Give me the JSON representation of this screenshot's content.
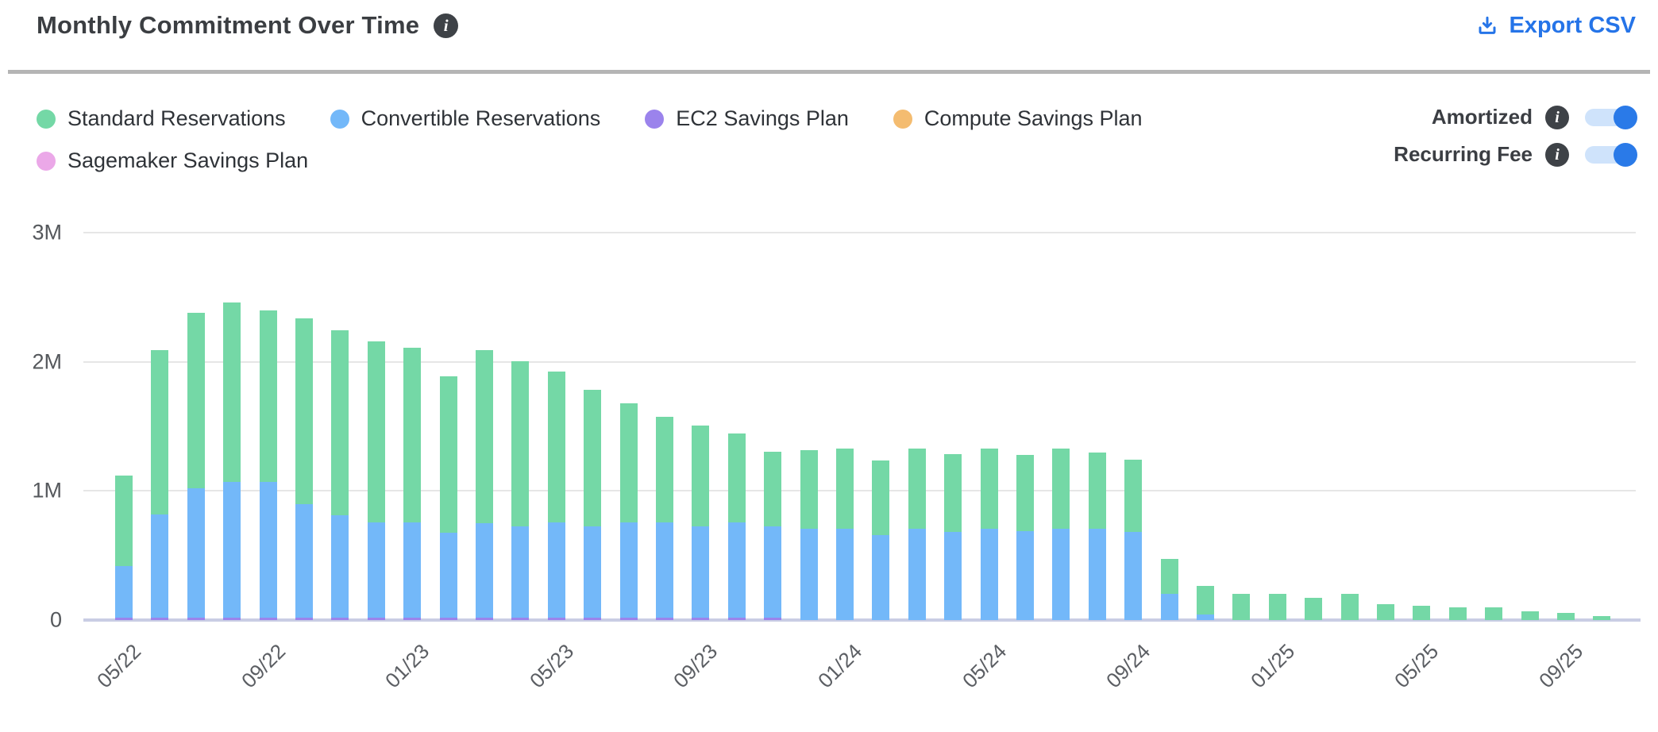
{
  "header": {
    "title": "Monthly Commitment Over Time",
    "export_label": "Export CSV"
  },
  "legend": {
    "items": [
      {
        "label": "Standard Reservations",
        "color": "#74d8a6"
      },
      {
        "label": "Convertible Reservations",
        "color": "#73b8f9"
      },
      {
        "label": "EC2 Savings Plan",
        "color": "#9b83ec"
      },
      {
        "label": "Compute Savings Plan",
        "color": "#f4bc70"
      },
      {
        "label": "Sagemaker Savings Plan",
        "color": "#eba8e8"
      }
    ]
  },
  "toggles": [
    {
      "label": "Amortized",
      "state": "on"
    },
    {
      "label": "Recurring Fee",
      "state": "on"
    }
  ],
  "colors": {
    "accent_blue": "#2574e8",
    "toggle_track": "#cfe3fb",
    "toggle_knob": "#2a7ae8",
    "divider": "#b5b5b5",
    "gridline": "#e6e6e6",
    "axis_line": "#c9cde4",
    "info_icon_bg": "#3e4247"
  },
  "chart_data": {
    "type": "bar",
    "stacked": true,
    "title": "Monthly Commitment Over Time",
    "unit": "millions USD",
    "ylim": [
      0,
      3000000
    ],
    "grid": "horizontal",
    "y_ticks": [
      {
        "label": "0",
        "value": 0
      },
      {
        "label": "1M",
        "value": 1
      },
      {
        "label": "2M",
        "value": 2
      },
      {
        "label": "3M",
        "value": 3
      }
    ],
    "x_tick_every": 4,
    "categories": [
      "05/22",
      "06/22",
      "07/22",
      "08/22",
      "09/22",
      "10/22",
      "11/22",
      "12/22",
      "01/23",
      "02/23",
      "03/23",
      "04/23",
      "05/23",
      "06/23",
      "07/23",
      "08/23",
      "09/23",
      "10/23",
      "11/23",
      "12/23",
      "01/24",
      "02/24",
      "03/24",
      "04/24",
      "05/24",
      "06/24",
      "07/24",
      "08/24",
      "09/24",
      "10/24",
      "11/24",
      "12/24",
      "01/25",
      "02/25",
      "03/25",
      "04/25",
      "05/25",
      "06/25",
      "07/25",
      "08/25",
      "09/25",
      "10/25"
    ],
    "series": [
      {
        "name": "Standard Reservations",
        "color": "#74d8a6",
        "values_m": [
          0.7,
          1.27,
          1.36,
          1.39,
          1.33,
          1.44,
          1.43,
          1.4,
          1.35,
          1.21,
          1.34,
          1.28,
          1.17,
          1.06,
          0.92,
          0.82,
          0.78,
          0.69,
          0.58,
          0.61,
          0.62,
          0.58,
          0.62,
          0.6,
          0.62,
          0.59,
          0.62,
          0.59,
          0.56,
          0.27,
          0.22,
          0.2,
          0.2,
          0.17,
          0.2,
          0.12,
          0.11,
          0.1,
          0.1,
          0.07,
          0.055,
          0.03
        ]
      },
      {
        "name": "Convertible Reservations",
        "color": "#73b8f9",
        "values_m": [
          0.4,
          0.8,
          1.0,
          1.05,
          1.05,
          0.88,
          0.79,
          0.74,
          0.74,
          0.66,
          0.73,
          0.71,
          0.74,
          0.71,
          0.74,
          0.74,
          0.71,
          0.74,
          0.71,
          0.71,
          0.71,
          0.66,
          0.71,
          0.68,
          0.71,
          0.69,
          0.71,
          0.71,
          0.68,
          0.2,
          0.04,
          0,
          0,
          0,
          0,
          0,
          0,
          0,
          0,
          0,
          0,
          0
        ]
      },
      {
        "name": "EC2 Savings Plan",
        "color": "#9b83ec",
        "values_m": [
          0.02,
          0.02,
          0.02,
          0.02,
          0.02,
          0.02,
          0.02,
          0.02,
          0.02,
          0.02,
          0.02,
          0.02,
          0.02,
          0.02,
          0.02,
          0.02,
          0.02,
          0.02,
          0.02,
          0,
          0,
          0,
          0,
          0,
          0,
          0,
          0,
          0,
          0,
          0,
          0,
          0,
          0,
          0,
          0,
          0,
          0,
          0,
          0,
          0,
          0,
          0
        ]
      },
      {
        "name": "Compute Savings Plan",
        "color": "#f4bc70",
        "values_m": [
          0,
          0,
          0,
          0,
          0,
          0,
          0,
          0,
          0,
          0,
          0,
          0,
          0,
          0,
          0,
          0,
          0,
          0,
          0,
          0,
          0,
          0,
          0,
          0,
          0,
          0,
          0,
          0,
          0,
          0,
          0,
          0,
          0,
          0,
          0,
          0,
          0,
          0,
          0,
          0,
          0,
          0
        ]
      },
      {
        "name": "Sagemaker Savings Plan",
        "color": "#eba8e8",
        "values_m": [
          0,
          0,
          0,
          0,
          0,
          0,
          0,
          0,
          0,
          0,
          0,
          0,
          0,
          0,
          0,
          0,
          0,
          0,
          0,
          0,
          0,
          0,
          0,
          0,
          0,
          0,
          0,
          0,
          0,
          0,
          0,
          0,
          0,
          0,
          0,
          0,
          0,
          0,
          0,
          0,
          0,
          0
        ]
      }
    ]
  }
}
